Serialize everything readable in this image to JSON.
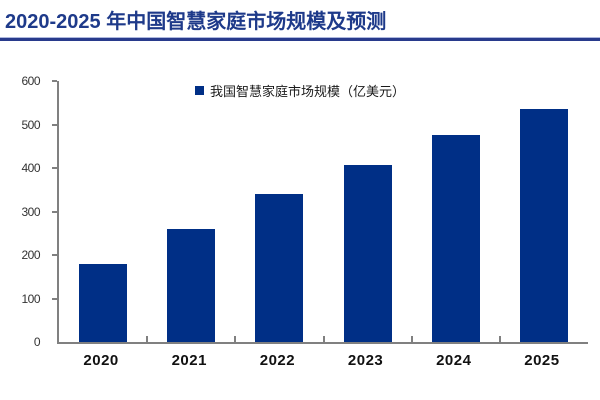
{
  "page": {
    "title": "2020-2025 年中国智慧家庭市场规模及预测"
  },
  "colors": {
    "bar": "#002f86",
    "title_text": "#1e3a8a",
    "title_rule": "#283a8c",
    "axis": "#808080",
    "legend_text": "#1a1a1a"
  },
  "chart_data": {
    "type": "bar",
    "title": "2020-2025 年中国智慧家庭市场规模及预测",
    "legend": "我国智慧家庭市场规模（亿美元）",
    "legend_position": "top-center",
    "categories": [
      "2020",
      "2021",
      "2022",
      "2023",
      "2024",
      "2025"
    ],
    "values": [
      180,
      260,
      340,
      407,
      476,
      536
    ],
    "xlabel": "",
    "ylabel": "",
    "ylim": [
      0,
      600
    ],
    "ytick_step": 100,
    "yticks": [
      0,
      100,
      200,
      300,
      400,
      500,
      600
    ],
    "grid": false,
    "bar_color": "#002f86"
  }
}
